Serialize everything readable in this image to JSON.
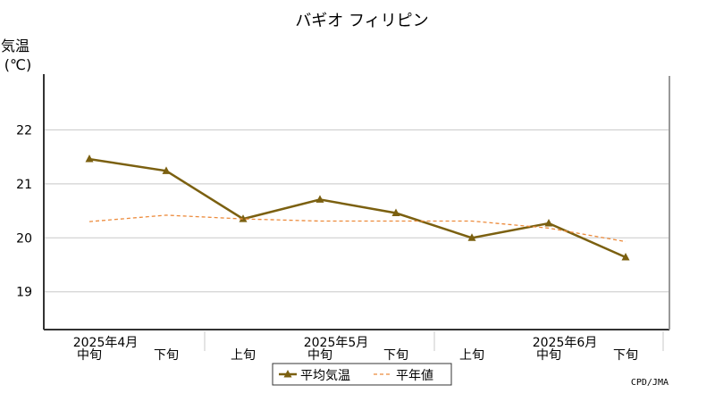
{
  "chart_data": {
    "type": "line",
    "title": "バギオ フィリピン",
    "ylabel_line1": "気温",
    "ylabel_line2": "(℃)",
    "ylim": [
      18.3,
      23.0
    ],
    "yticks": [
      19,
      20,
      21,
      22
    ],
    "x": [
      "2025年4月中旬",
      "2025年4月下旬",
      "2025年5月上旬",
      "2025年5月中旬",
      "2025年5月下旬",
      "2025年6月上旬",
      "2025年6月中旬",
      "2025年6月下旬"
    ],
    "x_dekad_labels": [
      "中旬",
      "下旬",
      "上旬",
      "中旬",
      "下旬",
      "上旬",
      "中旬",
      "下旬"
    ],
    "x_month_labels": [
      "2025年4月",
      "2025年5月",
      "2025年6月"
    ],
    "grid": true,
    "legend_position": "bottom-center",
    "series": [
      {
        "name": "平均気温",
        "color": "#7b6010",
        "style": "solid",
        "marker": "triangle",
        "values": [
          21.46,
          21.24,
          20.35,
          20.71,
          20.46,
          20.0,
          20.27,
          19.64
        ]
      },
      {
        "name": "平年値",
        "color": "#ec8b3c",
        "style": "dashed",
        "marker": "none",
        "values": [
          20.3,
          20.42,
          20.35,
          20.31,
          20.31,
          20.31,
          20.18,
          19.93
        ]
      }
    ]
  },
  "credit": "CPD/JMA"
}
